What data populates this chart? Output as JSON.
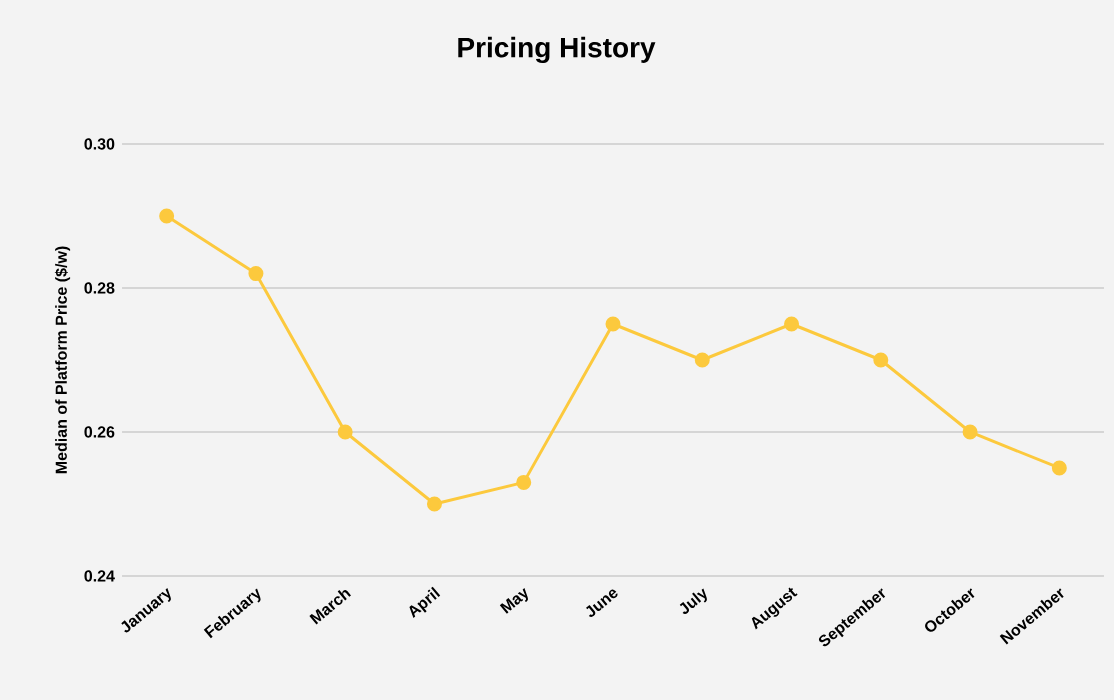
{
  "chart_data": {
    "type": "line",
    "title": "Pricing History",
    "ylabel": "Median of Platform Price ($/w)",
    "categories": [
      "January",
      "February",
      "March",
      "April",
      "May",
      "June",
      "July",
      "August",
      "September",
      "October",
      "November"
    ],
    "series": [
      {
        "color": "#fcc93d",
        "values": [
          0.29,
          0.282,
          0.26,
          0.25,
          0.253,
          0.275,
          0.27,
          0.275,
          0.27,
          0.26,
          0.255
        ]
      }
    ],
    "ylim": [
      0.24,
      0.3
    ],
    "yticks": [
      0.24,
      0.26,
      0.28,
      {
        "value": 0.3,
        "label": "0.30"
      }
    ],
    "grid": "y",
    "marker": "circle"
  }
}
